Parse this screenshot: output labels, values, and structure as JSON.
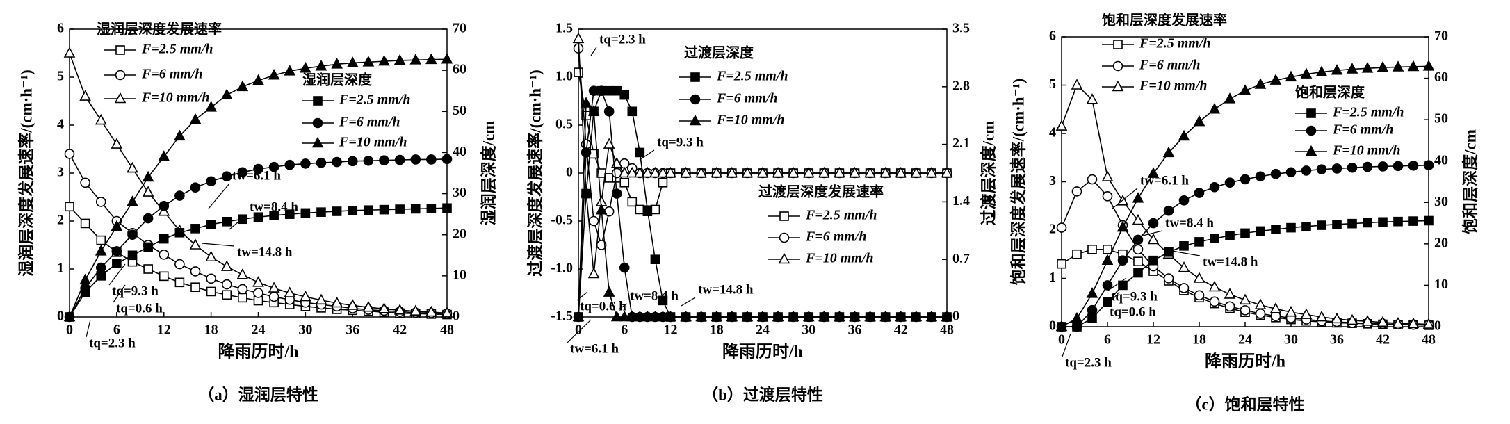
{
  "chart_data": [
    {
      "type": "line",
      "title": "（a）湿润层特性",
      "xlabel": "降雨历时/h",
      "ylabel": "湿润层深度发展速率/(cm·h⁻¹)",
      "y2label": "湿润层深度/cm",
      "legend_title_y": "湿润层深度发展速率",
      "legend_title_y2": "湿润层深度",
      "xlim": [
        0,
        48
      ],
      "xticks": [
        0,
        6,
        12,
        18,
        24,
        30,
        36,
        42,
        48
      ],
      "ylim": [
        0,
        6
      ],
      "yticks": [
        0,
        1,
        2,
        3,
        4,
        5,
        6
      ],
      "y2lim": [
        0,
        70
      ],
      "y2ticks": [
        0,
        10,
        20,
        30,
        40,
        50,
        60,
        70
      ],
      "x": [
        0,
        2,
        4,
        6,
        8,
        10,
        12,
        14,
        16,
        18,
        20,
        22,
        24,
        26,
        28,
        30,
        32,
        34,
        36,
        38,
        40,
        42,
        44,
        46,
        48
      ],
      "series": [
        {
          "name": "F=2.5 mm/h",
          "color": "#000000",
          "marker": "square",
          "fill": "open",
          "values": [
            2.3,
            1.95,
            1.6,
            1.35,
            1.15,
            1.0,
            0.85,
            0.72,
            0.62,
            0.53,
            0.46,
            0.4,
            0.34,
            0.3,
            0.26,
            0.22,
            0.19,
            0.16,
            0.14,
            0.12,
            0.1,
            0.08,
            0.07,
            0.06,
            0.05
          ]
        },
        {
          "name": "F=6 mm/h",
          "color": "#000000",
          "marker": "circle",
          "fill": "open",
          "values": [
            3.4,
            2.8,
            2.4,
            2.0,
            1.75,
            1.5,
            1.3,
            1.1,
            0.95,
            0.8,
            0.68,
            0.58,
            0.5,
            0.42,
            0.36,
            0.3,
            0.26,
            0.22,
            0.18,
            0.15,
            0.13,
            0.11,
            0.09,
            0.08,
            0.07
          ]
        },
        {
          "name": "F=10 mm/h",
          "color": "#000000",
          "marker": "triangle",
          "fill": "open",
          "values": [
            5.5,
            4.6,
            4.1,
            3.6,
            3.1,
            2.6,
            2.2,
            1.8,
            1.5,
            1.25,
            1.05,
            0.88,
            0.72,
            0.6,
            0.5,
            0.42,
            0.35,
            0.29,
            0.24,
            0.2,
            0.17,
            0.14,
            0.12,
            0.1,
            0.08
          ]
        },
        {
          "name": "F=2.5 mm/h",
          "color": "#000000",
          "marker": "square",
          "fill": "filled",
          "axis": "y2",
          "values": [
            0,
            6,
            10,
            13,
            15,
            17,
            19,
            20.5,
            21.5,
            22.5,
            23.2,
            23.8,
            24.3,
            24.7,
            25,
            25.3,
            25.5,
            25.7,
            25.9,
            26,
            26.1,
            26.2,
            26.3,
            26.4,
            26.5
          ]
        },
        {
          "name": "F=6 mm/h",
          "color": "#000000",
          "marker": "circle",
          "fill": "filled",
          "axis": "y2",
          "values": [
            0,
            7,
            12,
            16,
            20,
            24,
            27,
            29.5,
            31.5,
            33,
            34.2,
            35.2,
            36,
            36.5,
            37,
            37.3,
            37.5,
            37.7,
            37.9,
            38,
            38.1,
            38.2,
            38.3,
            38.3,
            38.4
          ]
        },
        {
          "name": "F=10 mm/h",
          "color": "#000000",
          "marker": "triangle",
          "fill": "filled",
          "axis": "y2",
          "values": [
            0,
            9,
            16,
            22,
            28,
            34,
            39,
            44,
            48,
            51,
            54,
            56,
            57.5,
            58.8,
            59.8,
            60.5,
            61,
            61.5,
            61.8,
            62,
            62.2,
            62.4,
            62.5,
            62.6,
            62.7
          ]
        }
      ],
      "annotations": [
        "tw=6.1 h",
        "tw=8.4 h",
        "tw=14.8 h",
        "tq=9.3 h",
        "tq=0.6 h",
        "tq=2.3 h"
      ]
    },
    {
      "type": "line",
      "title": "（b）过渡层特性",
      "xlabel": "降雨历时/h",
      "ylabel": "过渡层深度发展速率/(cm·h⁻¹)",
      "y2label": "过渡层深度/cm",
      "legend_title_y": "过渡层深度发展速率",
      "legend_title_y2": "过渡层深度",
      "xlim": [
        0,
        48
      ],
      "xticks": [
        0,
        6,
        12,
        18,
        24,
        30,
        36,
        42,
        48
      ],
      "ylim": [
        -1.5,
        1.5
      ],
      "yticks": [
        -1.5,
        {
          "value": -1,
          "label": "-1.0"
        },
        -0.5,
        0,
        0.5,
        {
          "value": 1,
          "label": "1.0"
        },
        1.5
      ],
      "y2lim": [
        0,
        3.5
      ],
      "y2ticks": [
        0,
        0.7,
        1.4,
        2.1,
        2.8,
        3.5
      ],
      "x": [
        0,
        1,
        2,
        3,
        4,
        5,
        6,
        7,
        8,
        9,
        10,
        11,
        12,
        14,
        16,
        18,
        20,
        22,
        24,
        26,
        28,
        30,
        32,
        34,
        36,
        38,
        40,
        42,
        44,
        46,
        48
      ],
      "series": [
        {
          "name": "F=2.5 mm/h",
          "color": "#000000",
          "marker": "square",
          "fill": "open",
          "values": [
            1.05,
            0.6,
            0.2,
            0,
            -0.05,
            -0.05,
            -0.1,
            -0.3,
            -0.38,
            -0.4,
            -0.38,
            -0.1,
            0,
            0,
            0,
            0,
            0,
            0,
            0,
            0,
            0,
            0,
            0,
            0,
            0,
            0,
            0,
            0,
            0,
            0,
            0
          ]
        },
        {
          "name": "F=6 mm/h",
          "color": "#000000",
          "marker": "circle",
          "fill": "open",
          "values": [
            1.3,
            0.3,
            -0.5,
            -0.75,
            -0.4,
            0,
            0.1,
            0.05,
            0,
            0,
            0,
            0,
            0,
            0,
            0,
            0,
            0,
            0,
            0,
            0,
            0,
            0,
            0,
            0,
            0,
            0,
            0,
            0,
            0,
            0,
            0
          ]
        },
        {
          "name": "F=10 mm/h",
          "color": "#000000",
          "marker": "triangle",
          "fill": "open",
          "values": [
            1.4,
            -0.2,
            -1.05,
            -0.3,
            0.3,
            0.1,
            0,
            0,
            0,
            0,
            0,
            0,
            0,
            0,
            0,
            0,
            0,
            0,
            0,
            0,
            0,
            0,
            0,
            0,
            0,
            0,
            0,
            0,
            0,
            0,
            0
          ]
        },
        {
          "name": "F=2.5 mm/h",
          "color": "#000000",
          "marker": "square",
          "fill": "filled",
          "axis": "y2",
          "values": [
            0,
            1.5,
            2.5,
            2.75,
            2.75,
            2.75,
            2.7,
            2.5,
            2.0,
            1.3,
            0.7,
            0.2,
            0,
            0,
            0,
            0,
            0,
            0,
            0,
            0,
            0,
            0,
            0,
            0,
            0,
            0,
            0,
            0,
            0,
            0,
            0
          ]
        },
        {
          "name": "F=6 mm/h",
          "color": "#000000",
          "marker": "circle",
          "fill": "filled",
          "axis": "y2",
          "values": [
            0,
            2.0,
            2.75,
            2.75,
            2.5,
            1.5,
            0.6,
            0,
            0,
            0,
            0,
            0,
            0,
            0,
            0,
            0,
            0,
            0,
            0,
            0,
            0,
            0,
            0,
            0,
            0,
            0,
            0,
            0,
            0,
            0,
            0
          ]
        },
        {
          "name": "F=10 mm/h",
          "color": "#000000",
          "marker": "triangle",
          "fill": "filled",
          "axis": "y2",
          "values": [
            0,
            2.6,
            2.5,
            1.3,
            0.3,
            0,
            0,
            0,
            0,
            0,
            0,
            0,
            0,
            0,
            0,
            0,
            0,
            0,
            0,
            0,
            0,
            0,
            0,
            0,
            0,
            0,
            0,
            0,
            0,
            0,
            0
          ]
        }
      ],
      "annotations": [
        "tq=2.3 h",
        "tq=9.3 h",
        "tw=8.4 h",
        "tw=14.8 h",
        "tq=0.6 h",
        "tw=6.1 h"
      ]
    },
    {
      "type": "line",
      "title": "（c）饱和层特性",
      "xlabel": "降雨历时/h",
      "ylabel": "饱和层深度发展速率/(cm·h⁻¹)",
      "y2label": "饱和层深度/cm",
      "legend_title_y": "饱和层深度发展速率",
      "legend_title_y2": "饱和层深度",
      "xlim": [
        0,
        48
      ],
      "xticks": [
        0,
        6,
        12,
        18,
        24,
        30,
        36,
        42,
        48
      ],
      "ylim": [
        0,
        6
      ],
      "yticks": [
        0,
        1,
        2,
        3,
        4,
        5,
        6
      ],
      "y2lim": [
        0,
        70
      ],
      "y2ticks": [
        0,
        10,
        20,
        30,
        40,
        50,
        60,
        70
      ],
      "x": [
        0,
        2,
        4,
        6,
        8,
        10,
        12,
        14,
        16,
        18,
        20,
        22,
        24,
        26,
        28,
        30,
        32,
        34,
        36,
        38,
        40,
        42,
        44,
        46,
        48
      ],
      "series": [
        {
          "name": "F=2.5 mm/h",
          "color": "#000000",
          "marker": "square",
          "fill": "open",
          "values": [
            1.3,
            1.5,
            1.6,
            1.6,
            1.5,
            1.35,
            1.15,
            0.95,
            0.75,
            0.6,
            0.48,
            0.38,
            0.3,
            0.24,
            0.19,
            0.15,
            0.12,
            0.1,
            0.08,
            0.07,
            0.06,
            0.05,
            0.04,
            0.04,
            0.03
          ]
        },
        {
          "name": "F=6 mm/h",
          "color": "#000000",
          "marker": "circle",
          "fill": "open",
          "values": [
            2.05,
            2.8,
            3.05,
            2.7,
            2.1,
            1.6,
            1.25,
            1.0,
            0.8,
            0.65,
            0.52,
            0.42,
            0.34,
            0.27,
            0.22,
            0.18,
            0.15,
            0.12,
            0.1,
            0.08,
            0.07,
            0.06,
            0.05,
            0.04,
            0.04
          ]
        },
        {
          "name": "F=10 mm/h",
          "color": "#000000",
          "marker": "triangle",
          "fill": "open",
          "values": [
            4.15,
            5.0,
            4.7,
            3.1,
            2.6,
            2.2,
            1.8,
            1.5,
            1.22,
            1.0,
            0.82,
            0.67,
            0.55,
            0.45,
            0.37,
            0.3,
            0.25,
            0.2,
            0.16,
            0.13,
            0.11,
            0.09,
            0.07,
            0.06,
            0.05
          ]
        },
        {
          "name": "F=2.5 mm/h",
          "color": "#000000",
          "marker": "square",
          "fill": "filled",
          "axis": "y2",
          "values": [
            0,
            0,
            2,
            6,
            10,
            13,
            16,
            18,
            19.5,
            20.5,
            21.3,
            22,
            22.6,
            23.1,
            23.5,
            23.9,
            24.2,
            24.5,
            24.7,
            24.9,
            25.1,
            25.3,
            25.4,
            25.5,
            25.6
          ]
        },
        {
          "name": "F=6 mm/h",
          "color": "#000000",
          "marker": "circle",
          "fill": "filled",
          "axis": "y2",
          "values": [
            0,
            0,
            4,
            10,
            16,
            21,
            25,
            28,
            30.5,
            32.3,
            33.7,
            34.8,
            35.6,
            36.3,
            36.9,
            37.3,
            37.7,
            38,
            38.2,
            38.4,
            38.6,
            38.7,
            38.8,
            38.9,
            39
          ]
        },
        {
          "name": "F=10 mm/h",
          "color": "#000000",
          "marker": "triangle",
          "fill": "filled",
          "axis": "y2",
          "values": [
            0,
            2,
            8,
            16,
            24,
            31,
            37,
            42,
            46,
            49.5,
            52.5,
            55,
            57,
            58.5,
            59.5,
            60.3,
            61,
            61.5,
            61.9,
            62.2,
            62.4,
            62.6,
            62.7,
            62.8,
            62.9
          ]
        }
      ],
      "annotations": [
        "tw=6.1 h",
        "tw=8.4 h",
        "tw=14.8 h",
        "tq=9.3 h",
        "tq=0.6 h",
        "tq=2.3 h"
      ]
    }
  ]
}
